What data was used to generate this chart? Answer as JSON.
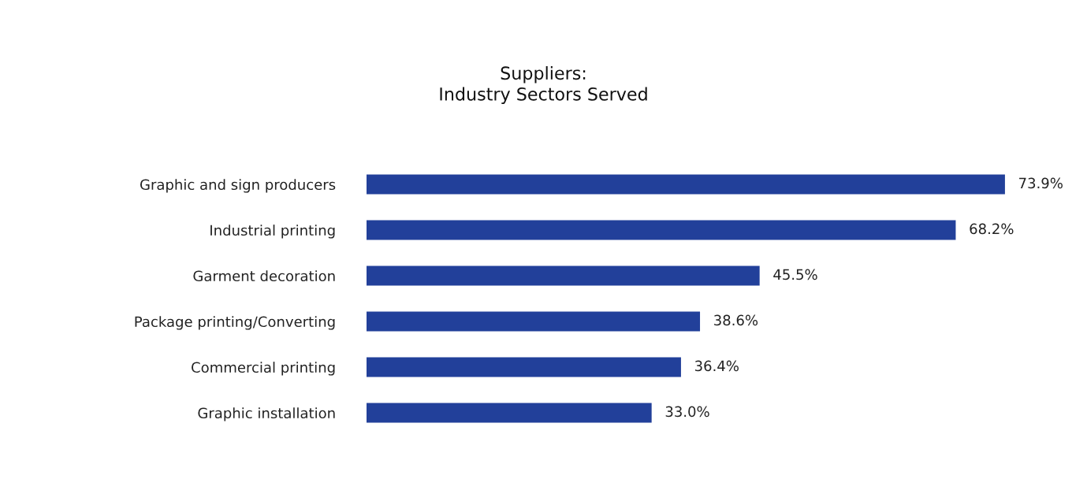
{
  "chart_data": {
    "type": "bar",
    "orientation": "horizontal",
    "title": "Suppliers:\nIndustry Sectors Served",
    "categories": [
      "Graphic and sign producers",
      "Industrial printing",
      "Garment decoration",
      "Package printing/Converting",
      "Commercial printing",
      "Graphic installation"
    ],
    "values": [
      73.9,
      68.2,
      45.5,
      38.6,
      36.4,
      33.0
    ],
    "value_labels": [
      "73.9%",
      "68.2%",
      "45.5%",
      "38.6%",
      "36.4%",
      "33.0%"
    ],
    "color": "#22409a",
    "grid": false,
    "legend": false
  }
}
